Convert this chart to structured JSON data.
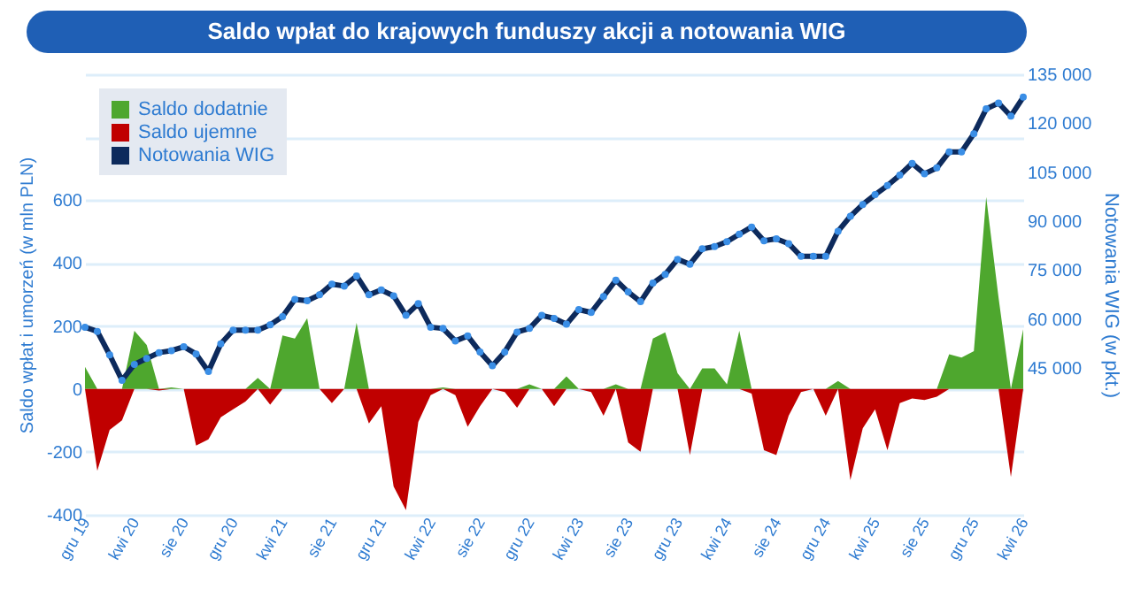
{
  "chart_data": {
    "type": "area",
    "title": "Saldo wpłat do krajowych funduszy akcji a notowania WIG",
    "ylabel": "Saldo wpłat i umorzeń (w mln PLN)",
    "y2label": "Notowania WIG (w pkt.)",
    "categories": [
      "gru 19",
      null,
      null,
      null,
      "kwi 20",
      null,
      null,
      null,
      "sie 20",
      null,
      null,
      null,
      "gru 20",
      null,
      null,
      null,
      "kwi 21",
      null,
      null,
      null,
      "sie 21",
      null,
      null,
      null,
      "gru 21",
      null,
      null,
      null,
      "kwi 22",
      null,
      null,
      null,
      "sie 22",
      null,
      null,
      null,
      "gru 22",
      null,
      null,
      null,
      "kwi 23",
      null,
      null,
      null,
      "sie 23",
      null,
      null,
      null,
      "gru 23",
      null,
      null,
      null,
      "kwi 24",
      null,
      null,
      null,
      "sie 24",
      null,
      null,
      null,
      "gru 24",
      null,
      null,
      null,
      "kwi 25",
      null,
      null,
      null,
      "sie 25",
      null,
      null,
      null,
      "gru 25",
      null,
      null,
      null,
      "kwi 26"
    ],
    "series": [
      {
        "name": "Saldo dodatnie",
        "color": "#4ea72e",
        "values": [
          70,
          0,
          0,
          0,
          185,
          140,
          0,
          5,
          0,
          0,
          0,
          0,
          0,
          0,
          35,
          0,
          170,
          160,
          225,
          0,
          0,
          0,
          210,
          0,
          0,
          0,
          0,
          0,
          0,
          5,
          0,
          0,
          0,
          0,
          0,
          0,
          15,
          0,
          0,
          40,
          0,
          0,
          0,
          15,
          0,
          0,
          160,
          180,
          50,
          0,
          65,
          65,
          15,
          185,
          0,
          0,
          0,
          0,
          0,
          0,
          0,
          25,
          0,
          0,
          0,
          0,
          0,
          0,
          0,
          0,
          110,
          100,
          120,
          610,
          290,
          0,
          190
        ]
      },
      {
        "name": "Saldo ujemne",
        "color": "#c00000",
        "values": [
          0,
          -260,
          -130,
          -100,
          0,
          0,
          -5,
          0,
          0,
          -180,
          -160,
          -90,
          -65,
          -40,
          0,
          -50,
          0,
          0,
          0,
          0,
          -45,
          0,
          0,
          -110,
          -55,
          -310,
          -385,
          -105,
          -20,
          0,
          -20,
          -120,
          -55,
          0,
          -10,
          -60,
          0,
          0,
          -55,
          0,
          0,
          -10,
          -85,
          0,
          -170,
          -200,
          0,
          0,
          0,
          -210,
          0,
          0,
          0,
          0,
          -15,
          -195,
          -210,
          -85,
          -10,
          0,
          -85,
          0,
          -290,
          -125,
          -65,
          -195,
          -45,
          -30,
          -35,
          -25,
          0,
          0,
          0,
          0,
          0,
          -280,
          0
        ]
      },
      {
        "name": "Notowania WIG",
        "type": "line",
        "axis": "y2",
        "marker": "circle",
        "color": "#0d2a5c",
        "values": [
          57500,
          56200,
          49000,
          41200,
          46100,
          47900,
          49700,
          50300,
          51500,
          49300,
          43900,
          52400,
          56600,
          56600,
          56600,
          58200,
          60700,
          66000,
          65600,
          67400,
          70700,
          70100,
          73200,
          67400,
          68900,
          67100,
          61100,
          64700,
          57500,
          57100,
          53300,
          54800,
          49900,
          45700,
          49900,
          56000,
          57100,
          61100,
          60200,
          58400,
          62900,
          62000,
          66900,
          71900,
          68300,
          65300,
          71000,
          73700,
          78300,
          76800,
          81500,
          82200,
          83700,
          86000,
          88200,
          84000,
          84600,
          83100,
          79200,
          79200,
          79200,
          86900,
          91500,
          95100,
          98100,
          100900,
          104100,
          107700,
          104500,
          106300,
          111200,
          111200,
          116800,
          124400,
          126200,
          122200,
          128000
        ]
      }
    ],
    "ylim": [
      -400,
      1000
    ],
    "yticks": [
      -400,
      -200,
      0,
      200,
      400,
      600,
      {
        "value": 800,
        "label": null
      },
      {
        "value": 1000,
        "label": null
      }
    ],
    "y2lim": [
      0,
      135000
    ],
    "y2ticks": [
      {
        "value": 45000,
        "label": "45 000"
      },
      {
        "value": 60000,
        "label": "60 000"
      },
      {
        "value": 75000,
        "label": "75 000"
      },
      {
        "value": 90000,
        "label": "90 000"
      },
      {
        "value": 105000,
        "label": "105 000"
      },
      {
        "value": 120000,
        "label": "120 000"
      },
      {
        "value": 135000,
        "label": "135 000"
      }
    ],
    "grid": "y",
    "legend": "top left"
  }
}
